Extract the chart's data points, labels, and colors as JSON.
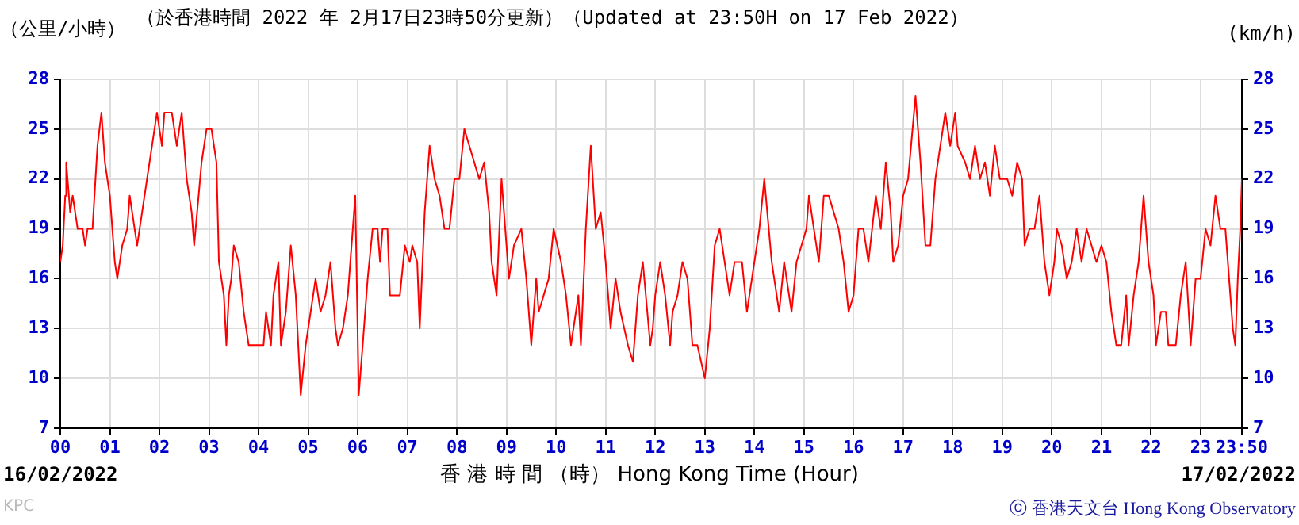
{
  "chart_data": {
    "type": "line",
    "title": "（於香港時間 2022 年 2月17日23時50分更新）（Updated at 23:50H on 17 Feb 2022）",
    "ylabel": "（公里/小時）",
    "y2label": "(km/h)",
    "xlabel": "香 港 時 間 （時） Hong Kong Time (Hour)",
    "annotations": [
      "16/02/2022",
      "17/02/2022",
      "KPC",
      "ⓒ 香港天文台 Hong Kong Observatory"
    ],
    "xlim": [
      0,
      23.833
    ],
    "xticks": [
      {
        "value": 0,
        "label": "00"
      },
      {
        "value": 1,
        "label": "01"
      },
      {
        "value": 2,
        "label": "02"
      },
      {
        "value": 3,
        "label": "03"
      },
      {
        "value": 4,
        "label": "04"
      },
      {
        "value": 5,
        "label": "05"
      },
      {
        "value": 6,
        "label": "06"
      },
      {
        "value": 7,
        "label": "07"
      },
      {
        "value": 8,
        "label": "08"
      },
      {
        "value": 9,
        "label": "09"
      },
      {
        "value": 10,
        "label": "10"
      },
      {
        "value": 11,
        "label": "11"
      },
      {
        "value": 12,
        "label": "12"
      },
      {
        "value": 13,
        "label": "13"
      },
      {
        "value": 14,
        "label": "14"
      },
      {
        "value": 15,
        "label": "15"
      },
      {
        "value": 16,
        "label": "16"
      },
      {
        "value": 17,
        "label": "17"
      },
      {
        "value": 18,
        "label": "18"
      },
      {
        "value": 19,
        "label": "19"
      },
      {
        "value": 20,
        "label": "20"
      },
      {
        "value": 21,
        "label": "21"
      },
      {
        "value": 22,
        "label": "22"
      },
      {
        "value": 23,
        "label": "23"
      },
      {
        "value": 23.833,
        "label": "23:50"
      }
    ],
    "ylim": [
      7,
      28
    ],
    "yticks": [
      7,
      10,
      13,
      16,
      19,
      22,
      25,
      28
    ],
    "y2lim": [
      7,
      28
    ],
    "y2ticks": [
      7,
      10,
      13,
      16,
      19,
      22,
      25,
      28
    ],
    "grid": true,
    "line_style": "solid",
    "marker": "none",
    "series": [
      {
        "color": "#ff0000",
        "x": [
          0,
          0.05,
          0.1,
          0.12,
          0.2,
          0.25,
          0.3,
          0.35,
          0.45,
          0.5,
          0.55,
          0.65,
          0.75,
          0.83,
          0.9,
          1.0,
          1.1,
          1.15,
          1.25,
          1.35,
          1.4,
          1.5,
          1.55,
          1.65,
          1.75,
          1.85,
          1.95,
          2.05,
          2.1,
          2.25,
          2.35,
          2.45,
          2.55,
          2.65,
          2.7,
          2.85,
          2.95,
          3.05,
          3.15,
          3.2,
          3.3,
          3.35,
          3.4,
          3.45,
          3.5,
          3.6,
          3.7,
          3.8,
          4.0,
          4.1,
          4.15,
          4.25,
          4.3,
          4.4,
          4.45,
          4.55,
          4.65,
          4.75,
          4.85,
          4.95,
          5.05,
          5.15,
          5.25,
          5.35,
          5.45,
          5.55,
          5.6,
          5.7,
          5.8,
          5.9,
          5.95,
          6.02,
          6.1,
          6.2,
          6.3,
          6.4,
          6.45,
          6.5,
          6.6,
          6.65,
          6.75,
          6.85,
          6.95,
          7.05,
          7.1,
          7.2,
          7.25,
          7.35,
          7.45,
          7.55,
          7.65,
          7.75,
          7.85,
          7.95,
          8.05,
          8.15,
          8.25,
          8.35,
          8.45,
          8.55,
          8.65,
          8.7,
          8.8,
          8.9,
          9.0,
          9.05,
          9.15,
          9.3,
          9.4,
          9.5,
          9.6,
          9.65,
          9.75,
          9.85,
          9.95,
          10.1,
          10.2,
          10.3,
          10.45,
          10.5,
          10.6,
          10.7,
          10.8,
          10.9,
          11.0,
          11.1,
          11.2,
          11.3,
          11.45,
          11.55,
          11.65,
          11.75,
          11.9,
          11.95,
          12.0,
          12.1,
          12.2,
          12.3,
          12.35,
          12.45,
          12.55,
          12.65,
          12.75,
          12.85,
          13.0,
          13.1,
          13.2,
          13.3,
          13.4,
          13.5,
          13.6,
          13.75,
          13.85,
          13.95,
          14.1,
          14.2,
          14.35,
          14.5,
          14.6,
          14.75,
          14.85,
          14.95,
          15.05,
          15.1,
          15.2,
          15.3,
          15.4,
          15.5,
          15.6,
          15.7,
          15.8,
          15.9,
          16.0,
          16.1,
          16.2,
          16.3,
          16.45,
          16.55,
          16.65,
          16.75,
          16.8,
          16.9,
          17.0,
          17.1,
          17.25,
          17.35,
          17.45,
          17.55,
          17.65,
          17.75,
          17.85,
          17.95,
          18.05,
          18.1,
          18.25,
          18.35,
          18.45,
          18.55,
          18.65,
          18.75,
          18.85,
          18.95,
          19.1,
          19.2,
          19.3,
          19.4,
          19.45,
          19.55,
          19.65,
          19.75,
          19.85,
          19.95,
          20.05,
          20.1,
          20.2,
          20.3,
          20.4,
          20.5,
          20.6,
          20.7,
          20.8,
          20.9,
          21.0,
          21.1,
          21.2,
          21.3,
          21.4,
          21.5,
          21.55,
          21.65,
          21.75,
          21.85,
          21.95,
          22.05,
          22.1,
          22.2,
          22.3,
          22.35,
          22.5,
          22.6,
          22.7,
          22.8,
          22.9,
          23.0,
          23.1,
          23.2,
          23.3,
          23.4,
          23.5,
          23.6,
          23.65,
          23.7,
          23.75,
          23.8,
          23.833
        ],
        "values": [
          17,
          18,
          21,
          23,
          20,
          21,
          20,
          19,
          19,
          18,
          19,
          19,
          24,
          26,
          23,
          21,
          17,
          16,
          18,
          19,
          21,
          19,
          18,
          20,
          22,
          24,
          26,
          24,
          26,
          26,
          24,
          26,
          22,
          20,
          18,
          23,
          25,
          25,
          23,
          17,
          15,
          12,
          15,
          16,
          18,
          17,
          14,
          12,
          12,
          12,
          14,
          12,
          15,
          17,
          12,
          14,
          18,
          15,
          9,
          12,
          14,
          16,
          14,
          15,
          17,
          13,
          12,
          13,
          15,
          19,
          21,
          9,
          12,
          16,
          19,
          19,
          17,
          19,
          19,
          15,
          15,
          15,
          18,
          17,
          18,
          17,
          13,
          20,
          24,
          22,
          21,
          19,
          19,
          22,
          22,
          25,
          24,
          23,
          22,
          23,
          20,
          17,
          15,
          22,
          18,
          16,
          18,
          19,
          16,
          12,
          16,
          14,
          15,
          16,
          19,
          17,
          15,
          12,
          15,
          12,
          19,
          24,
          19,
          20,
          17,
          13,
          16,
          14,
          12,
          11,
          15,
          17,
          12,
          13,
          15,
          17,
          15,
          12,
          14,
          15,
          17,
          16,
          12,
          12,
          10,
          13,
          18,
          19,
          17,
          15,
          17,
          17,
          14,
          16,
          19,
          22,
          17,
          14,
          17,
          14,
          17,
          18,
          19,
          21,
          19,
          17,
          21,
          21,
          20,
          19,
          17,
          14,
          15,
          19,
          19,
          17,
          21,
          19,
          23,
          20,
          17,
          18,
          21,
          22,
          27,
          23,
          18,
          18,
          22,
          24,
          26,
          24,
          26,
          24,
          23,
          22,
          24,
          22,
          23,
          21,
          24,
          22,
          22,
          21,
          23,
          22,
          18,
          19,
          19,
          21,
          17,
          15,
          17,
          19,
          18,
          16,
          17,
          19,
          17,
          19,
          18,
          17,
          18,
          17,
          14,
          12,
          12,
          15,
          12,
          15,
          17,
          21,
          17,
          15,
          12,
          14,
          14,
          12,
          12,
          15,
          17,
          12,
          16,
          16,
          19,
          18,
          21,
          19,
          19,
          15,
          13,
          12,
          16,
          19,
          22
        ]
      }
    ]
  }
}
